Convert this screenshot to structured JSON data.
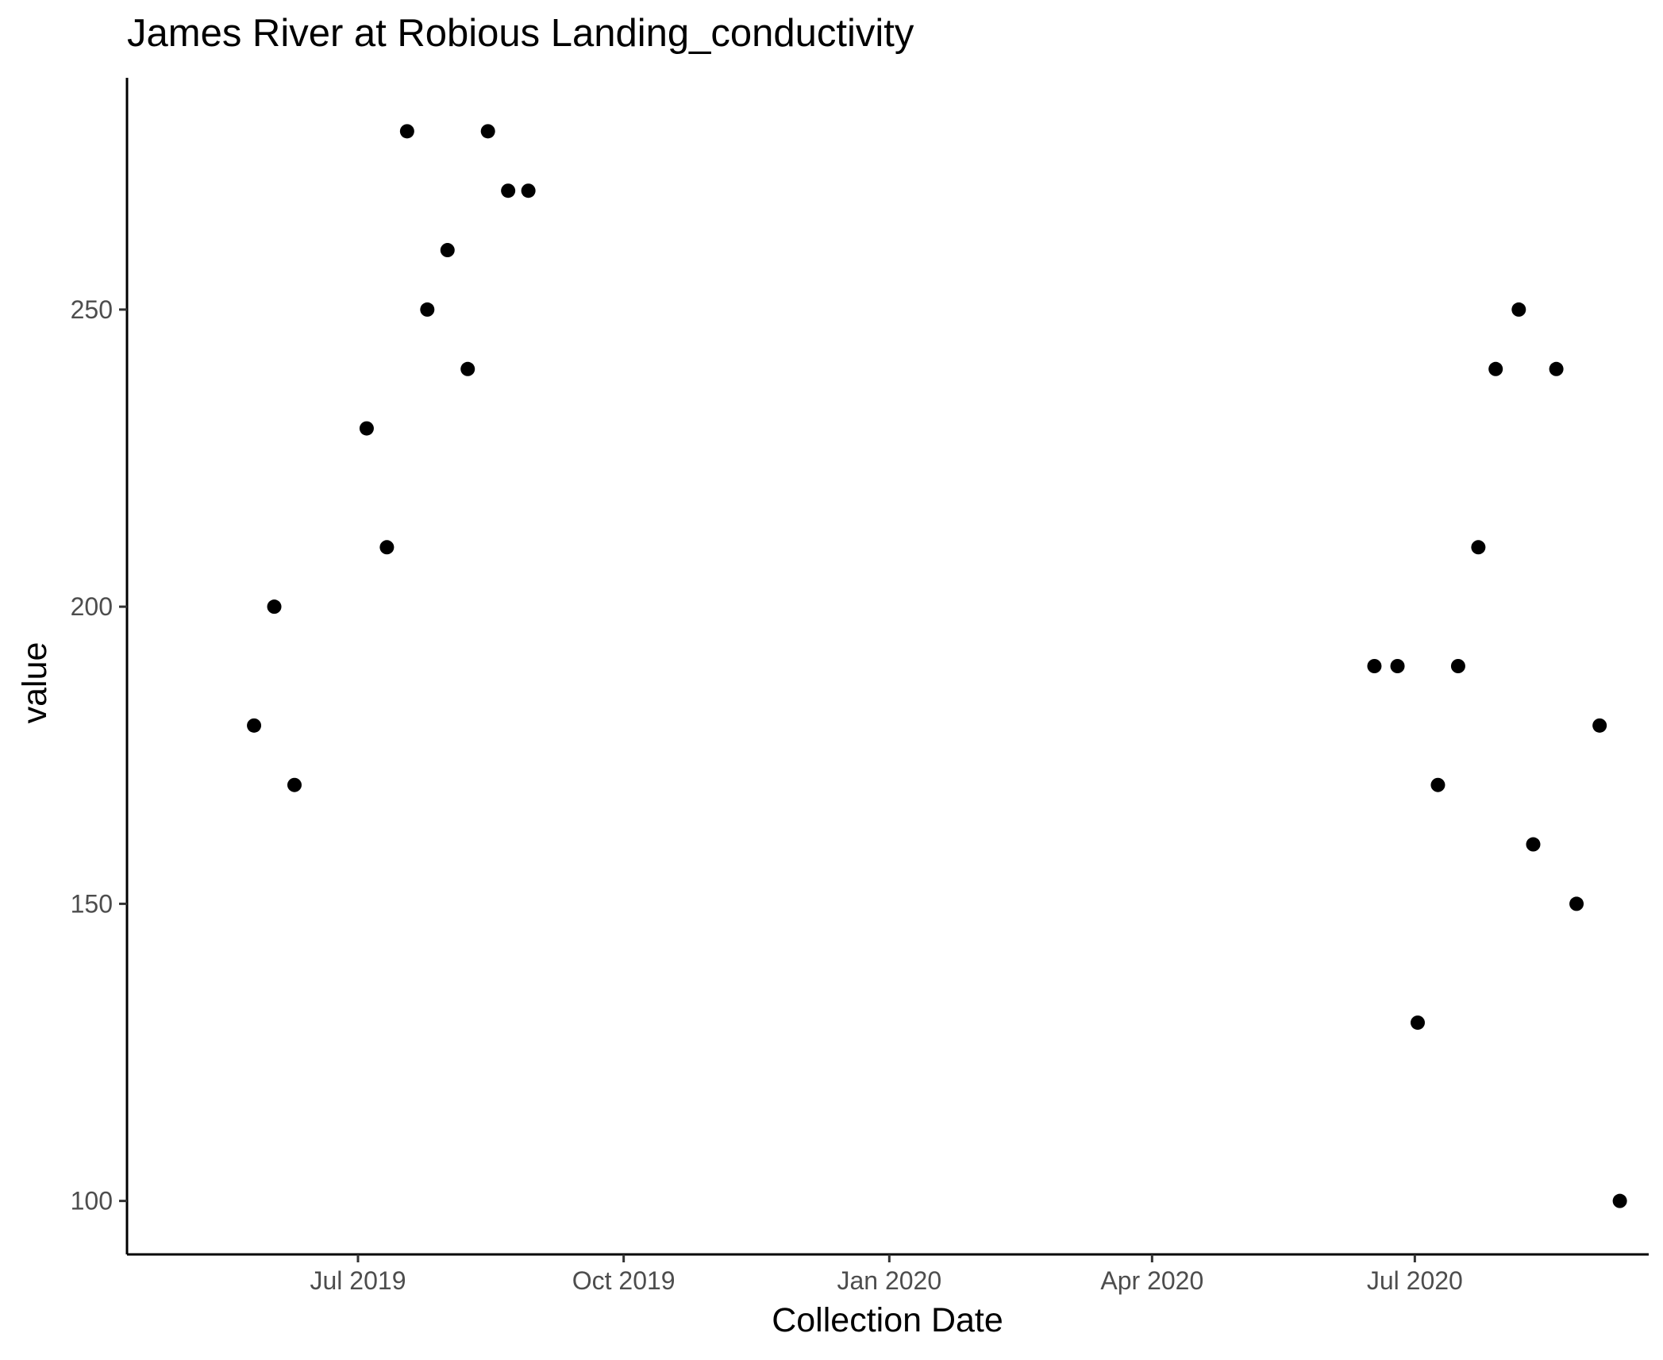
{
  "chart_data": {
    "type": "scatter",
    "title": "James River at Robious Landing_conductivity",
    "xlabel": "Collection Date",
    "ylabel": "value",
    "x_axis_type": "date",
    "xlim": [
      "2019-04-12",
      "2020-09-20"
    ],
    "ylim": [
      91,
      289
    ],
    "x_ticks": [
      {
        "date": "2019-07-01",
        "label": "Jul 2019"
      },
      {
        "date": "2019-10-01",
        "label": "Oct 2019"
      },
      {
        "date": "2020-01-01",
        "label": "Jan 2020"
      },
      {
        "date": "2020-04-01",
        "label": "Apr 2020"
      },
      {
        "date": "2020-07-01",
        "label": "Jul 2020"
      }
    ],
    "y_ticks": [
      100,
      150,
      200,
      250
    ],
    "grid": false,
    "legend": "none",
    "point_color": "#000000",
    "series": [
      {
        "points": [
          {
            "x": "2019-05-26",
            "y": 180
          },
          {
            "x": "2019-06-02",
            "y": 200
          },
          {
            "x": "2019-06-09",
            "y": 170
          },
          {
            "x": "2019-07-04",
            "y": 230
          },
          {
            "x": "2019-07-11",
            "y": 210
          },
          {
            "x": "2019-07-18",
            "y": 280
          },
          {
            "x": "2019-07-25",
            "y": 250
          },
          {
            "x": "2019-08-01",
            "y": 260
          },
          {
            "x": "2019-08-08",
            "y": 240
          },
          {
            "x": "2019-08-15",
            "y": 280
          },
          {
            "x": "2019-08-22",
            "y": 270
          },
          {
            "x": "2019-08-29",
            "y": 270
          },
          {
            "x": "2020-06-17",
            "y": 190
          },
          {
            "x": "2020-06-25",
            "y": 190
          },
          {
            "x": "2020-07-02",
            "y": 130
          },
          {
            "x": "2020-07-09",
            "y": 170
          },
          {
            "x": "2020-07-16",
            "y": 190
          },
          {
            "x": "2020-07-23",
            "y": 210
          },
          {
            "x": "2020-07-29",
            "y": 240
          },
          {
            "x": "2020-08-06",
            "y": 250
          },
          {
            "x": "2020-08-11",
            "y": 160
          },
          {
            "x": "2020-08-19",
            "y": 240
          },
          {
            "x": "2020-08-26",
            "y": 150
          },
          {
            "x": "2020-09-03",
            "y": 180
          },
          {
            "x": "2020-09-10",
            "y": 100
          }
        ]
      }
    ]
  }
}
